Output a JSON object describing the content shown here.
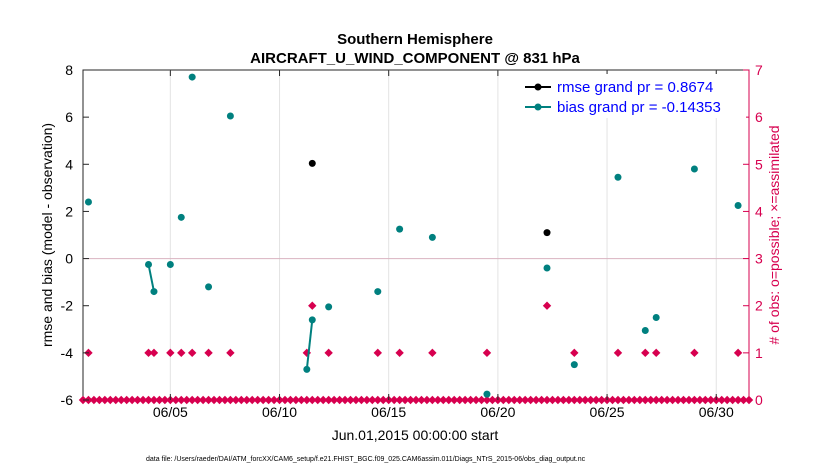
{
  "chart_data": {
    "type": "scatter",
    "title": "Southern Hemisphere",
    "subtitle": "AIRCRAFT_U_WIND_COMPONENT @ 831 hPa",
    "xlabel": "Jun.01,2015 00:00:00 start",
    "ylabel": "rmse and bias (model - observation)",
    "ylabel_right": "# of obs: o=possible; ×=assimilated",
    "footer": "data file: /Users/raeder/DAI/ATM_forcXX/CAM6_setup/f.e21.FHIST_BGC.f09_025.CAM6assim.011/Diags_NTrS_2015-06/obs_diag_output.nc",
    "xlim": [
      1,
      31.5
    ],
    "ylim": [
      -6,
      8
    ],
    "ylim_right": [
      0,
      7
    ],
    "x_ticks": [
      5,
      10,
      15,
      20,
      25,
      30
    ],
    "x_tick_labels": [
      "06/05",
      "06/10",
      "06/15",
      "06/20",
      "06/25",
      "06/30"
    ],
    "y_ticks": [
      -6,
      -4,
      -2,
      0,
      2,
      4,
      6,
      8
    ],
    "y_tick_labels": [
      "-6",
      "-4",
      "-2",
      "0",
      "2",
      "4",
      "6",
      "8"
    ],
    "y_right_ticks": [
      0,
      1,
      2,
      3,
      4,
      5,
      6,
      7
    ],
    "y_right_tick_labels": [
      "0",
      "1",
      "2",
      "3",
      "4",
      "5",
      "6",
      "7"
    ],
    "colors": {
      "rmse": "#000000",
      "bias": "#00807f",
      "obs": "#d7004f",
      "zero_line": "#d9b3c0",
      "axis": "#262626",
      "legend_text": "#0000ff"
    },
    "series": [
      {
        "name": "rmse grand pr = 0.8674",
        "points": [
          [
            11.5,
            4.04
          ],
          [
            22.25,
            1.1
          ]
        ]
      },
      {
        "name": "bias grand pr = -0.14353",
        "points": [
          [
            1.25,
            2.4
          ],
          [
            4.0,
            -0.25
          ],
          [
            4.25,
            -1.4
          ],
          [
            5.0,
            -0.25
          ],
          [
            5.5,
            1.75
          ],
          [
            6.0,
            7.7
          ],
          [
            6.75,
            -1.2
          ],
          [
            7.75,
            6.05
          ],
          [
            11.25,
            -4.7
          ],
          [
            11.5,
            -2.6
          ],
          [
            12.25,
            -2.05
          ],
          [
            14.5,
            -1.4
          ],
          [
            15.5,
            1.25
          ],
          [
            17.0,
            0.9
          ],
          [
            19.5,
            -5.75
          ],
          [
            22.25,
            -0.4
          ],
          [
            23.5,
            -4.5
          ],
          [
            25.5,
            3.45
          ],
          [
            26.75,
            -3.05
          ],
          [
            27.25,
            -2.5
          ],
          [
            29.0,
            3.8
          ],
          [
            31.0,
            2.25
          ]
        ],
        "segments": [
          [
            4.0,
            4.25
          ],
          [
            11.25,
            11.5
          ]
        ]
      },
      {
        "name": "# of obs possible",
        "axis": "right",
        "points": [
          [
            1.25,
            1
          ],
          [
            4.0,
            1
          ],
          [
            4.25,
            1
          ],
          [
            5.0,
            1
          ],
          [
            5.5,
            1
          ],
          [
            6.0,
            1
          ],
          [
            6.75,
            1
          ],
          [
            7.75,
            1
          ],
          [
            11.25,
            1
          ],
          [
            11.5,
            2
          ],
          [
            12.25,
            1
          ],
          [
            14.5,
            1
          ],
          [
            15.5,
            1
          ],
          [
            17.0,
            1
          ],
          [
            19.5,
            1
          ],
          [
            22.25,
            2
          ],
          [
            23.5,
            1
          ],
          [
            25.5,
            1
          ],
          [
            26.75,
            1
          ],
          [
            27.25,
            1
          ],
          [
            29.0,
            1
          ],
          [
            31.0,
            1
          ]
        ],
        "zero_x_start": 1,
        "zero_x_end": 31.5,
        "zero_x_step": 0.25
      }
    ]
  }
}
